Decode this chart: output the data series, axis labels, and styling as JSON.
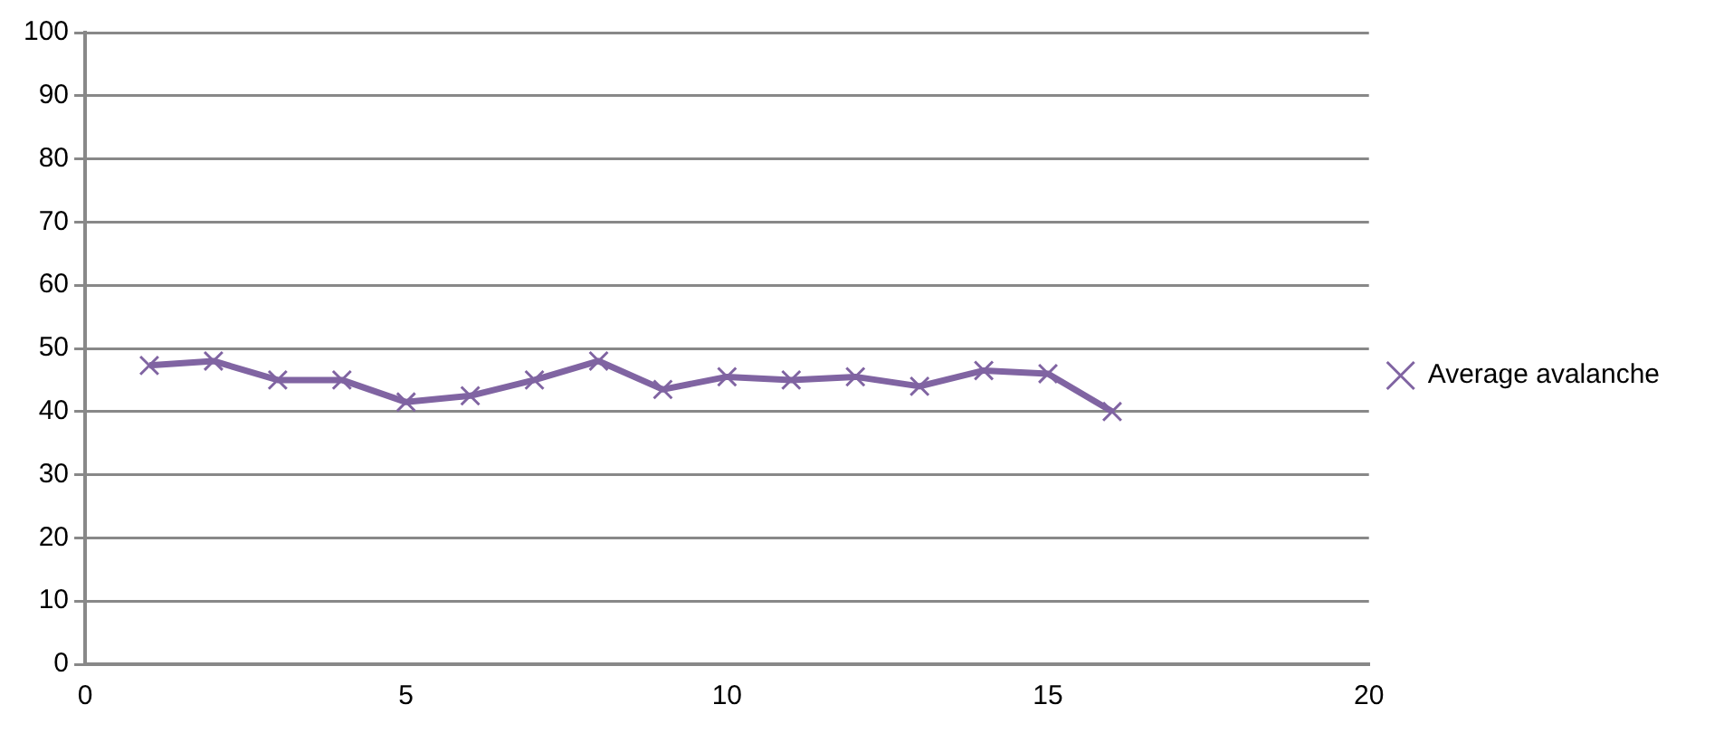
{
  "chart_data": {
    "type": "line",
    "x": [
      1,
      2,
      3,
      4,
      5,
      6,
      7,
      8,
      9,
      10,
      11,
      12,
      13,
      14,
      15,
      16
    ],
    "series": [
      {
        "name": "Average avalanche",
        "color": "#8064a2",
        "values": [
          47.3,
          48,
          45,
          45,
          41.5,
          42.5,
          45,
          48,
          43.5,
          45.5,
          45,
          45.5,
          44,
          46.5,
          46,
          40
        ]
      }
    ],
    "xlim": [
      0,
      20
    ],
    "xticks": [
      0,
      5,
      10,
      15,
      20
    ],
    "ylim": [
      0,
      100
    ],
    "yticks": [
      0,
      10,
      20,
      30,
      40,
      50,
      60,
      70,
      80,
      90,
      100
    ],
    "grid": "y",
    "legend": "right",
    "marker": "cross"
  }
}
